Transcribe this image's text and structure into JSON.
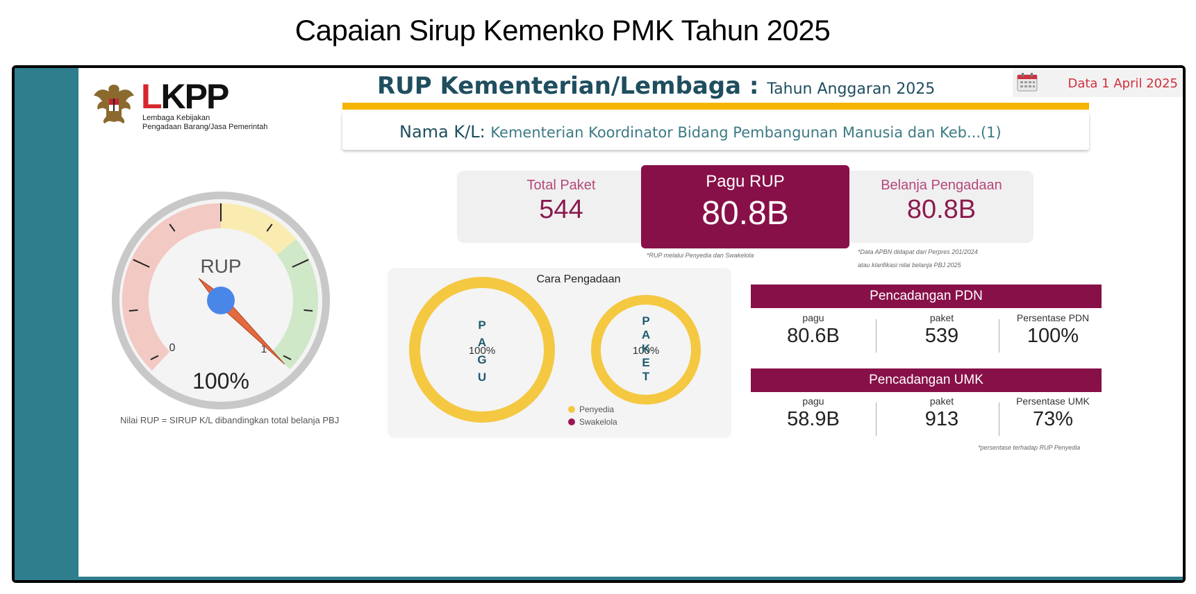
{
  "page": {
    "title": "Capaian Sirup Kemenko PMK Tahun 2025"
  },
  "logo": {
    "brand": "LKPP",
    "line1": "Lembaga Kebijakan",
    "line2": "Pengadaan Barang/Jasa Pemerintah"
  },
  "header": {
    "title": "RUP Kementerian/Lembaga :",
    "year_label": "Tahun Anggaran 2025",
    "date_label": "Data 1 April 2025"
  },
  "kl": {
    "label": "Nama K/L:",
    "value": "Kementerian Koordinator Bidang Pembangunan Manusia dan Keb...(1)"
  },
  "gauge": {
    "label": "RUP",
    "value_text": "100%",
    "value_fraction": 1.0,
    "min_label": "0",
    "max_label": "1",
    "note": "Nilai RUP = SIRUP K/L dibandingkan total belanja PBJ"
  },
  "stats": {
    "total_paket": {
      "label": "Total Paket",
      "value": "544"
    },
    "pagu_rup": {
      "label": "Pagu RUP",
      "value": "80.8B",
      "note": "*RUP melalui Penyedia dan Swakelola"
    },
    "belanja": {
      "label": "Belanja Pengadaan",
      "value": "80.8B",
      "note1": "*Data APBN didapat dari Perpres 201/2024",
      "note2": "atau klarifikasi nilai belanja PBJ 2025"
    }
  },
  "cara": {
    "title": "Cara Pengadaan",
    "pagu": {
      "letters": [
        "P",
        "A",
        "G",
        "U"
      ],
      "percent": "100%"
    },
    "paket": {
      "letters": [
        "P",
        "A",
        "K",
        "E",
        "T"
      ],
      "percent": "100%"
    },
    "legend": [
      {
        "label": "Penyedia",
        "color": "#f5c842"
      },
      {
        "label": "Swakelola",
        "color": "#9c1458"
      }
    ]
  },
  "pdn": {
    "title": "Pencadangan PDN",
    "pagu_label": "pagu",
    "pagu_value": "80.6B",
    "paket_label": "paket",
    "paket_value": "539",
    "pct_label": "Persentase PDN",
    "pct_value": "100%"
  },
  "umk": {
    "title": "Pencadangan UMK",
    "pagu_label": "pagu",
    "pagu_value": "58.9B",
    "paket_label": "paket",
    "paket_value": "913",
    "pct_label": "Persentase UMK",
    "pct_value": "73%",
    "note": "*persentase terhadap RUP Penyedia"
  },
  "colors": {
    "teal": "#2f7e8d",
    "gold": "#f4b400",
    "maroon": "#881048",
    "donut": "#f5c842"
  }
}
